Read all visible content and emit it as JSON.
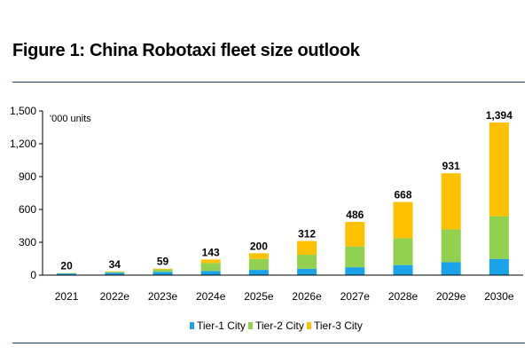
{
  "title": "Figure 1: China Robotaxi fleet size outlook",
  "chart_data": {
    "type": "bar",
    "stacked": true,
    "unit_label": "'000 units",
    "categories": [
      "2021",
      "2022e",
      "2023e",
      "2024e",
      "2025e",
      "2026e",
      "2027e",
      "2028e",
      "2029e",
      "2030e"
    ],
    "series": [
      {
        "name": "Tier-1 City",
        "color": "#1aa3e8",
        "values": [
          15,
          22,
          30,
          38,
          48,
          58,
          72,
          92,
          118,
          148
        ]
      },
      {
        "name": "Tier-2 City",
        "color": "#92d050",
        "values": [
          4,
          9,
          22,
          72,
          100,
          128,
          190,
          245,
          300,
          390
        ]
      },
      {
        "name": "Tier-3 City",
        "color": "#ffc000",
        "values": [
          1,
          3,
          7,
          33,
          52,
          126,
          224,
          331,
          513,
          856
        ]
      }
    ],
    "totals": [
      "20",
      "34",
      "59",
      "143",
      "200",
      "312",
      "486",
      "668",
      "931",
      "1,394"
    ],
    "ylim": [
      0,
      1500
    ],
    "yticks": [
      0,
      300,
      600,
      900,
      1200,
      1500
    ],
    "ytick_labels": [
      "0",
      "300",
      "600",
      "900",
      "1,200",
      "1,500"
    ],
    "grid": false,
    "legend_position": "bottom"
  }
}
